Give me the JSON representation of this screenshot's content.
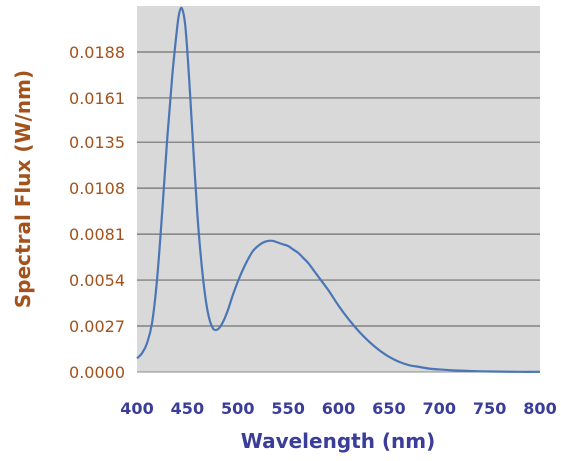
{
  "chart_data": {
    "type": "line",
    "title": "",
    "xlabel": "Wavelength (nm)",
    "ylabel": "Spectral Flux (W/nm)",
    "xlim": [
      400,
      800
    ],
    "ylim": [
      0,
      0.0215
    ],
    "x_ticks": [
      "400",
      "450",
      "500",
      "550",
      "600",
      "650",
      "700",
      "750",
      "800"
    ],
    "y_ticks": [
      "0.0000",
      "0.0027",
      "0.0054",
      "0.0081",
      "0.0108",
      "0.0135",
      "0.0161",
      "0.0188"
    ],
    "grid": "horizontal",
    "legend": "none",
    "colors": {
      "plot_bg": "#d9d9d9",
      "line": "#4a76b5",
      "grid": "#707070",
      "y_text": "#a4521b",
      "x_text": "#3b3d9a"
    },
    "series": [
      {
        "x": [
          400,
          405,
          410,
          415,
          420,
          425,
          430,
          435,
          440,
          442,
          444,
          446,
          448,
          450,
          452,
          455,
          460,
          465,
          470,
          475,
          480,
          485,
          490,
          495,
          500,
          505,
          510,
          515,
          520,
          525,
          530,
          535,
          540,
          545,
          550,
          555,
          560,
          565,
          570,
          575,
          580,
          590,
          600,
          610,
          620,
          630,
          640,
          650,
          660,
          670,
          680,
          690,
          700,
          720,
          740,
          760,
          780,
          800
        ],
        "y": [
          0.0008,
          0.0011,
          0.0017,
          0.0029,
          0.0055,
          0.0094,
          0.0137,
          0.0174,
          0.0203,
          0.0211,
          0.0214,
          0.0211,
          0.0203,
          0.0188,
          0.017,
          0.014,
          0.0092,
          0.0058,
          0.0036,
          0.0026,
          0.0025,
          0.0029,
          0.0036,
          0.0045,
          0.0053,
          0.006,
          0.0066,
          0.0071,
          0.0074,
          0.0076,
          0.0077,
          0.0077,
          0.0076,
          0.0075,
          0.0074,
          0.0072,
          0.007,
          0.0067,
          0.0064,
          0.006,
          0.0056,
          0.0048,
          0.0039,
          0.0031,
          0.0024,
          0.0018,
          0.0013,
          0.0009,
          0.0006,
          0.0004,
          0.0003,
          0.0002,
          0.00015,
          8e-05,
          4e-05,
          2e-05,
          1e-05,
          1e-05
        ]
      }
    ]
  }
}
